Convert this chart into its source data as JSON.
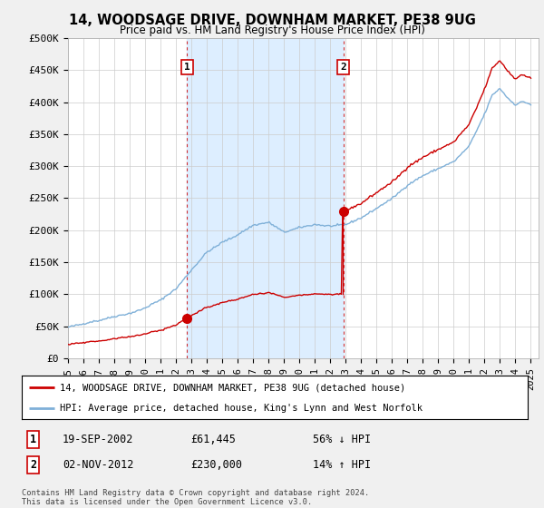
{
  "title": "14, WOODSAGE DRIVE, DOWNHAM MARKET, PE38 9UG",
  "subtitle": "Price paid vs. HM Land Registry's House Price Index (HPI)",
  "ylim": [
    0,
    500000
  ],
  "yticks": [
    0,
    50000,
    100000,
    150000,
    200000,
    250000,
    300000,
    350000,
    400000,
    450000,
    500000
  ],
  "ytick_labels": [
    "£0",
    "£50K",
    "£100K",
    "£150K",
    "£200K",
    "£250K",
    "£300K",
    "£350K",
    "£400K",
    "£450K",
    "£500K"
  ],
  "xlim_start": 1995.0,
  "xlim_end": 2025.5,
  "hpi_color": "#7fb0d8",
  "price_color": "#cc0000",
  "background_color": "#f0f0f0",
  "plot_bg_color": "#ffffff",
  "shaded_region_color": "#ddeeff",
  "legend_label_red": "14, WOODSAGE DRIVE, DOWNHAM MARKET, PE38 9UG (detached house)",
  "legend_label_blue": "HPI: Average price, detached house, King's Lynn and West Norfolk",
  "transaction1_date": "19-SEP-2002",
  "transaction1_price": "£61,445",
  "transaction1_hpi": "56% ↓ HPI",
  "transaction2_date": "02-NOV-2012",
  "transaction2_price": "£230,000",
  "transaction2_hpi": "14% ↑ HPI",
  "footer": "Contains HM Land Registry data © Crown copyright and database right 2024.\nThis data is licensed under the Open Government Licence v3.0.",
  "marker1_x": 2002.72,
  "marker1_y": 61445,
  "marker2_x": 2012.84,
  "marker2_y": 230000,
  "vline1_x": 2002.72,
  "vline2_x": 2012.84
}
